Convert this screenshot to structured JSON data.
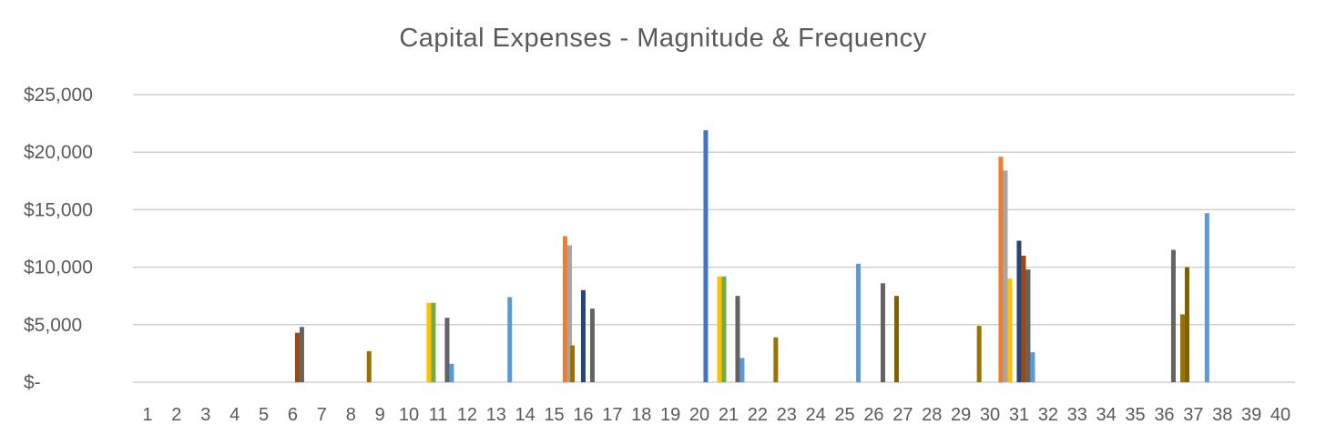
{
  "chart_data": {
    "type": "bar",
    "title": "Capital Expenses - Magnitude & Frequency",
    "xlabel": "",
    "ylabel": "",
    "ylim": [
      0,
      25000
    ],
    "grid": true,
    "legend": "none",
    "yticks": [
      {
        "value": 0,
        "label": "$-"
      },
      {
        "value": 5000,
        "label": "$5,000"
      },
      {
        "value": 10000,
        "label": "$10,000"
      },
      {
        "value": 15000,
        "label": "$15,000"
      },
      {
        "value": 20000,
        "label": "$20,000"
      },
      {
        "value": 25000,
        "label": "$25,000"
      }
    ],
    "categories": [
      "1",
      "2",
      "3",
      "4",
      "5",
      "6",
      "7",
      "8",
      "9",
      "10",
      "11",
      "12",
      "13",
      "14",
      "15",
      "16",
      "17",
      "18",
      "19",
      "20",
      "21",
      "22",
      "23",
      "24",
      "25",
      "26",
      "27",
      "28",
      "29",
      "30",
      "31",
      "32",
      "33",
      "34",
      "35",
      "36",
      "37",
      "38",
      "39",
      "40"
    ],
    "series": [
      {
        "color": "#4472c4",
        "values": {
          "21": 21900
        }
      },
      {
        "color": "#ed7d31",
        "values": {
          "16": 12700,
          "31": 19600
        }
      },
      {
        "color": "#a5a5a5",
        "values": {
          "16": 11900,
          "31": 18400
        }
      },
      {
        "color": "#ffc000",
        "values": {
          "11": 6900,
          "21": 9200,
          "31": 9000
        }
      },
      {
        "color": "#70ad47",
        "values": {
          "11": 6900,
          "21": 9200
        }
      },
      {
        "color": "#264478",
        "values": {
          "16": 8000,
          "31": 12300
        }
      },
      {
        "color": "#9e480e",
        "values": {
          "6": 4300,
          "31": 11000
        }
      },
      {
        "color": "#636363",
        "values": {
          "6": 4800,
          "11": 5600,
          "16": 6400,
          "21": 7500,
          "26": 8600,
          "31": 9800,
          "36": 11500
        }
      },
      {
        "color": "#5b9bd5",
        "values": {
          "11": 1600,
          "21": 2100,
          "31": 2600,
          "13": 7400,
          "25": 10300,
          "37": 14700
        }
      },
      {
        "color": "#997300",
        "values": {
          "8": 2700,
          "15": 3200,
          "22": 3900,
          "29": 4900,
          "36": 5900
        }
      },
      {
        "color": "#7f6000",
        "values": {
          "26": 7500,
          "36": 10000
        }
      }
    ]
  }
}
